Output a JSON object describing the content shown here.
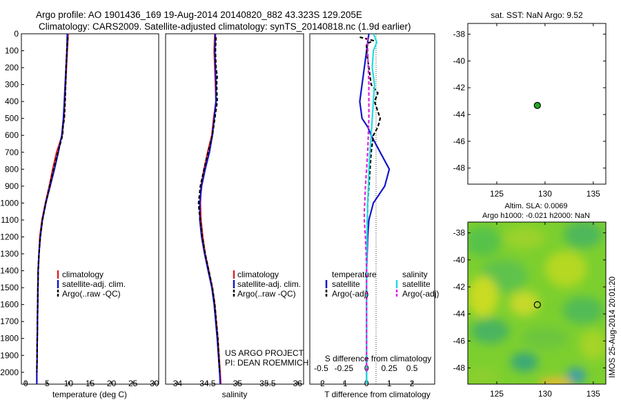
{
  "title": {
    "line1": "Argo profile: AO 1901436_169 19-Aug-2014 20140820_882 43.323S 129.205E",
    "line2": "Climatology: CARS2009. Satellite-adjusted climatology: synTS_20140818.nc (1.9d earlier)"
  },
  "colors": {
    "climatology": "#e02020",
    "satellite": "#1515c8",
    "argo": "#000000",
    "sal_satellite": "#22dddd",
    "sal_argo": "#e020e0",
    "dot": "#22aa22"
  },
  "legend": {
    "climatology": "climatology",
    "satellite": "satellite-adj. clim.",
    "argo": "Argo(..raw -QC)",
    "diff_temp_head": "temperature",
    "diff_sal_head": "salinity",
    "diff_satellite": "satellite",
    "diff_argo": "Argo(-adj)"
  },
  "credit": {
    "line1": "US ARGO PROJECT",
    "line2": "PI: DEAN ROEMMICH"
  },
  "map_titles": {
    "sst": "sat. SST: NaN Argo: 9.52",
    "sla_line1": "Altim. SLA: 0.0069",
    "sla_line2": "Argo h1000: -0.021 h2000: NaN"
  },
  "watermark": "IMOS 25-Aug-2014 20:01:20",
  "chart_data": [
    {
      "type": "line",
      "panel": "temperature",
      "xlabel": "temperature (deg C)",
      "ylabel": "",
      "xlim": [
        -1,
        31
      ],
      "ylim": [
        2070,
        0
      ],
      "y_inverted": true,
      "xticks": [
        0,
        5,
        10,
        15,
        20,
        25,
        30
      ],
      "yticks": [
        0,
        100,
        200,
        300,
        400,
        500,
        600,
        700,
        800,
        900,
        1000,
        1100,
        1200,
        1300,
        1400,
        1500,
        1600,
        1700,
        1800,
        1900,
        2000
      ],
      "series": [
        {
          "name": "climatology",
          "depth": [
            0,
            100,
            200,
            300,
            400,
            500,
            600,
            700,
            800,
            900,
            1000,
            1100,
            1200,
            1300,
            1400,
            1600,
            1800,
            2000,
            2070
          ],
          "values": [
            9.9,
            9.7,
            9.5,
            9.3,
            9.1,
            8.9,
            8.5,
            7.2,
            6.3,
            5.5,
            4.6,
            3.8,
            3.3,
            3.1,
            2.9,
            2.8,
            2.7,
            2.6,
            2.6
          ]
        },
        {
          "name": "satellite-adj. clim.",
          "depth": [
            0,
            100,
            200,
            300,
            400,
            500,
            600,
            700,
            800,
            900,
            1000,
            1100,
            1200,
            1300,
            1400,
            1600,
            1800,
            2000,
            2070
          ],
          "values": [
            9.7,
            9.6,
            9.4,
            9.2,
            9.0,
            8.8,
            8.4,
            7.6,
            6.7,
            5.7,
            4.7,
            3.9,
            3.4,
            3.1,
            2.9,
            2.8,
            2.7,
            2.6,
            2.6
          ]
        },
        {
          "name": "Argo(..raw -QC)",
          "depth": [
            20,
            100,
            200,
            300,
            400,
            500,
            550,
            600,
            700,
            800,
            900,
            1000,
            1100,
            1200,
            1300,
            1400,
            1600,
            1800,
            2000
          ],
          "values": [
            9.8,
            9.6,
            9.4,
            9.3,
            9.2,
            9.0,
            8.7,
            8.6,
            7.5,
            6.5,
            5.6,
            4.7,
            3.9,
            3.4,
            3.1,
            2.9,
            2.8,
            2.7,
            2.6
          ]
        }
      ]
    },
    {
      "type": "line",
      "panel": "salinity",
      "xlabel": "salinity",
      "ylabel": "",
      "xlim": [
        33.8,
        36.1
      ],
      "ylim": [
        2070,
        0
      ],
      "y_inverted": true,
      "xticks": [
        34,
        34.5,
        35,
        35.5,
        36
      ],
      "series": [
        {
          "name": "climatology",
          "depth": [
            0,
            100,
            200,
            300,
            400,
            500,
            600,
            700,
            800,
            900,
            1000,
            1100,
            1200,
            1300,
            1400,
            1500,
            1600,
            1800,
            2000,
            2070
          ],
          "values": [
            34.62,
            34.61,
            34.62,
            34.63,
            34.64,
            34.6,
            34.57,
            34.5,
            34.44,
            34.39,
            34.38,
            34.39,
            34.42,
            34.46,
            34.52,
            34.58,
            34.62,
            34.67,
            34.71,
            34.72
          ]
        },
        {
          "name": "satellite-adj. clim.",
          "depth": [
            0,
            100,
            200,
            300,
            400,
            500,
            600,
            700,
            800,
            900,
            1000,
            1100,
            1200,
            1300,
            1400,
            1500,
            1600,
            1800,
            2000,
            2070
          ],
          "values": [
            34.63,
            34.62,
            34.63,
            34.64,
            34.64,
            34.61,
            34.58,
            34.53,
            34.46,
            34.4,
            34.37,
            34.37,
            34.4,
            34.45,
            34.51,
            34.57,
            34.61,
            34.66,
            34.7,
            34.71
          ]
        },
        {
          "name": "Argo(..raw -QC)",
          "depth": [
            20,
            100,
            200,
            250,
            300,
            400,
            500,
            600,
            700,
            800,
            900,
            1000,
            1050,
            1100,
            1200,
            1300,
            1400,
            1500,
            1600,
            1800,
            2000
          ],
          "values": [
            34.64,
            34.63,
            34.64,
            34.66,
            34.65,
            34.66,
            34.62,
            34.58,
            34.51,
            34.44,
            34.38,
            34.35,
            34.36,
            34.38,
            34.41,
            34.46,
            34.52,
            34.58,
            34.62,
            34.67,
            34.7
          ]
        }
      ]
    },
    {
      "type": "line",
      "panel": "difference",
      "xlabel": "T difference from climatology",
      "x2label": "S difference from climatology",
      "ylabel": "",
      "xlim": [
        -2.5,
        3
      ],
      "ylim": [
        2070,
        0
      ],
      "y_inverted": true,
      "xticks": [
        -2,
        -1,
        0,
        1,
        2
      ],
      "x2ticks": [
        "-0.5",
        "-0.25",
        "0",
        "0.25",
        "0.5"
      ],
      "series": [
        {
          "name": "temperature satellite",
          "depth": [
            0,
            50,
            100,
            200,
            300,
            400,
            500,
            550,
            600,
            700,
            800,
            900,
            1000,
            1100,
            1200,
            1400,
            1600,
            1800,
            2000,
            2070
          ],
          "values": [
            0.1,
            0.05,
            0.0,
            -0.1,
            -0.2,
            -0.3,
            -0.2,
            0.05,
            0.2,
            0.6,
            1.0,
            0.8,
            0.3,
            0.1,
            0.05,
            0.0,
            0.0,
            0.0,
            0.0,
            0.0
          ]
        },
        {
          "name": "temperature Argo(-adj)",
          "depth": [
            20,
            40,
            60,
            100,
            200,
            300,
            350,
            400,
            500,
            550,
            600,
            700,
            800,
            900,
            1000,
            1200,
            1400,
            1600,
            1800,
            2000
          ],
          "values": [
            -0.3,
            0.3,
            0.0,
            0.0,
            0.1,
            0.2,
            0.5,
            0.35,
            0.6,
            0.5,
            0.3,
            0.2,
            0.15,
            0.1,
            0.05,
            0.02,
            0.0,
            0.0,
            0.0,
            0.0
          ]
        },
        {
          "name": "salinity satellite",
          "depth": [
            0,
            50,
            100,
            200,
            300,
            400,
            500,
            600,
            700,
            800,
            900,
            1000,
            1100,
            1200,
            1400,
            1600,
            1800,
            2000,
            2070
          ],
          "values": [
            0.3,
            0.45,
            0.3,
            0.25,
            0.35,
            0.3,
            0.25,
            0.2,
            0.15,
            0.1,
            0.08,
            0.05,
            0.03,
            0.02,
            0.0,
            0.0,
            0.0,
            0.0,
            0.0
          ]
        },
        {
          "name": "salinity Argo(-adj)",
          "depth": [
            20,
            100,
            300,
            500,
            700,
            800,
            900,
            1000,
            1050,
            1100,
            1200,
            1300,
            1400,
            1600,
            1800,
            2000
          ],
          "values": [
            0.05,
            0.05,
            0.1,
            0.1,
            0.05,
            0.0,
            -0.05,
            -0.08,
            -0.1,
            -0.1,
            -0.05,
            -0.02,
            0.0,
            0.0,
            0.0,
            0.0
          ]
        }
      ]
    },
    {
      "type": "scatter",
      "panel": "sst_map",
      "title": "sat. SST: NaN Argo: 9.52",
      "xlim": [
        122,
        136.3
      ],
      "ylim": [
        -49.2,
        -37.2
      ],
      "xticks": [
        125,
        130,
        135
      ],
      "yticks": [
        -38,
        -40,
        -42,
        -44,
        -46,
        -48
      ],
      "points": [
        {
          "x": 129.205,
          "y": -43.323
        }
      ]
    },
    {
      "type": "heatmap",
      "panel": "sla_map",
      "title": "Altim. SLA: 0.0069",
      "subtitle": "Argo h1000: -0.021 h2000: NaN",
      "xlim": [
        122,
        136.3
      ],
      "ylim": [
        -49.2,
        -37.2
      ],
      "xticks": [
        125,
        130,
        135
      ],
      "yticks": [
        -38,
        -40,
        -42,
        -44,
        -46,
        -48
      ],
      "points": [
        {
          "x": 129.205,
          "y": -43.323
        }
      ]
    }
  ]
}
